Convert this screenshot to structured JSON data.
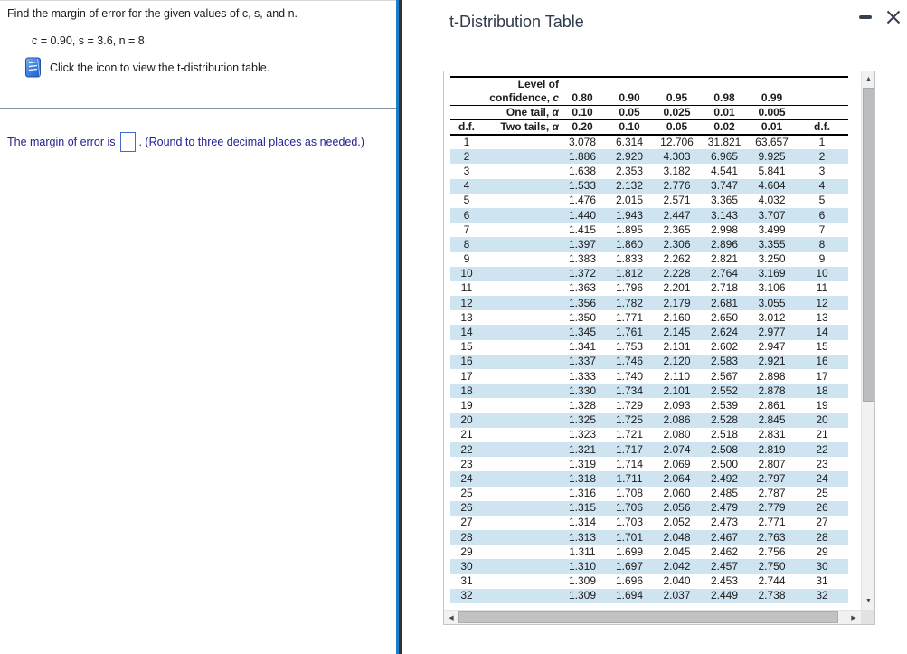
{
  "left_panel": {
    "question": "Find the margin of error for the given values of c, s, and n.",
    "given": "c = 0.90, s = 3.6, n = 8",
    "instruction": "Click the icon to view the t-distribution table.",
    "answer_prefix": "The margin of error is",
    "answer_value": "",
    "answer_suffix": ". (Round to three decimal places as needed.)"
  },
  "dialog": {
    "title": "t-Distribution Table"
  },
  "icons": {
    "view_table_icon": "book",
    "minimize_icon": "dash",
    "close_icon": "x",
    "scroll_up_icon": "▲",
    "scroll_down_icon": "▼",
    "scroll_left_icon": "◀",
    "scroll_right_icon": "▶"
  },
  "colors": {
    "divider_blue": "#1b7ec9",
    "divider_dark": "#333333",
    "row_stripe": "#cfe4f1",
    "answer_text": "#232394",
    "input_border": "#4169d0",
    "title_text": "#2e3b4a",
    "book_icon_blue": "#3f7fe0"
  },
  "table": {
    "df_header": "d.f.",
    "level_label_line1": "Level of",
    "level_label_line2_text": "confidence, ",
    "level_label_line2_var": "c",
    "one_tail_text": "One tail, ",
    "one_tail_var": "α",
    "two_tails_text": "Two tails, ",
    "two_tails_var": "α",
    "confidence_values": [
      "0.80",
      "0.90",
      "0.95",
      "0.98",
      "0.99"
    ],
    "one_tail_values": [
      "0.10",
      "0.05",
      "0.025",
      "0.01",
      "0.005"
    ],
    "two_tails_values": [
      "0.20",
      "0.10",
      "0.05",
      "0.02",
      "0.01"
    ],
    "rows": [
      {
        "df": "1",
        "values": [
          "3.078",
          "6.314",
          "12.706",
          "31.821",
          "63.657"
        ]
      },
      {
        "df": "2",
        "values": [
          "1.886",
          "2.920",
          "4.303",
          "6.965",
          "9.925"
        ]
      },
      {
        "df": "3",
        "values": [
          "1.638",
          "2.353",
          "3.182",
          "4.541",
          "5.841"
        ]
      },
      {
        "df": "4",
        "values": [
          "1.533",
          "2.132",
          "2.776",
          "3.747",
          "4.604"
        ]
      },
      {
        "df": "5",
        "values": [
          "1.476",
          "2.015",
          "2.571",
          "3.365",
          "4.032"
        ]
      },
      {
        "df": "6",
        "values": [
          "1.440",
          "1.943",
          "2.447",
          "3.143",
          "3.707"
        ]
      },
      {
        "df": "7",
        "values": [
          "1.415",
          "1.895",
          "2.365",
          "2.998",
          "3.499"
        ]
      },
      {
        "df": "8",
        "values": [
          "1.397",
          "1.860",
          "2.306",
          "2.896",
          "3.355"
        ]
      },
      {
        "df": "9",
        "values": [
          "1.383",
          "1.833",
          "2.262",
          "2.821",
          "3.250"
        ]
      },
      {
        "df": "10",
        "values": [
          "1.372",
          "1.812",
          "2.228",
          "2.764",
          "3.169"
        ]
      },
      {
        "df": "11",
        "values": [
          "1.363",
          "1.796",
          "2.201",
          "2.718",
          "3.106"
        ]
      },
      {
        "df": "12",
        "values": [
          "1.356",
          "1.782",
          "2.179",
          "2.681",
          "3.055"
        ]
      },
      {
        "df": "13",
        "values": [
          "1.350",
          "1.771",
          "2.160",
          "2.650",
          "3.012"
        ]
      },
      {
        "df": "14",
        "values": [
          "1.345",
          "1.761",
          "2.145",
          "2.624",
          "2.977"
        ]
      },
      {
        "df": "15",
        "values": [
          "1.341",
          "1.753",
          "2.131",
          "2.602",
          "2.947"
        ]
      },
      {
        "df": "16",
        "values": [
          "1.337",
          "1.746",
          "2.120",
          "2.583",
          "2.921"
        ]
      },
      {
        "df": "17",
        "values": [
          "1.333",
          "1.740",
          "2.110",
          "2.567",
          "2.898"
        ]
      },
      {
        "df": "18",
        "values": [
          "1.330",
          "1.734",
          "2.101",
          "2.552",
          "2.878"
        ]
      },
      {
        "df": "19",
        "values": [
          "1.328",
          "1.729",
          "2.093",
          "2.539",
          "2.861"
        ]
      },
      {
        "df": "20",
        "values": [
          "1.325",
          "1.725",
          "2.086",
          "2.528",
          "2.845"
        ]
      },
      {
        "df": "21",
        "values": [
          "1.323",
          "1.721",
          "2.080",
          "2.518",
          "2.831"
        ]
      },
      {
        "df": "22",
        "values": [
          "1.321",
          "1.717",
          "2.074",
          "2.508",
          "2.819"
        ]
      },
      {
        "df": "23",
        "values": [
          "1.319",
          "1.714",
          "2.069",
          "2.500",
          "2.807"
        ]
      },
      {
        "df": "24",
        "values": [
          "1.318",
          "1.711",
          "2.064",
          "2.492",
          "2.797"
        ]
      },
      {
        "df": "25",
        "values": [
          "1.316",
          "1.708",
          "2.060",
          "2.485",
          "2.787"
        ]
      },
      {
        "df": "26",
        "values": [
          "1.315",
          "1.706",
          "2.056",
          "2.479",
          "2.779"
        ]
      },
      {
        "df": "27",
        "values": [
          "1.314",
          "1.703",
          "2.052",
          "2.473",
          "2.771"
        ]
      },
      {
        "df": "28",
        "values": [
          "1.313",
          "1.701",
          "2.048",
          "2.467",
          "2.763"
        ]
      },
      {
        "df": "29",
        "values": [
          "1.311",
          "1.699",
          "2.045",
          "2.462",
          "2.756"
        ]
      },
      {
        "df": "30",
        "values": [
          "1.310",
          "1.697",
          "2.042",
          "2.457",
          "2.750"
        ]
      },
      {
        "df": "31",
        "values": [
          "1.309",
          "1.696",
          "2.040",
          "2.453",
          "2.744"
        ]
      },
      {
        "df": "32",
        "values": [
          "1.309",
          "1.694",
          "2.037",
          "2.449",
          "2.738"
        ]
      }
    ]
  }
}
